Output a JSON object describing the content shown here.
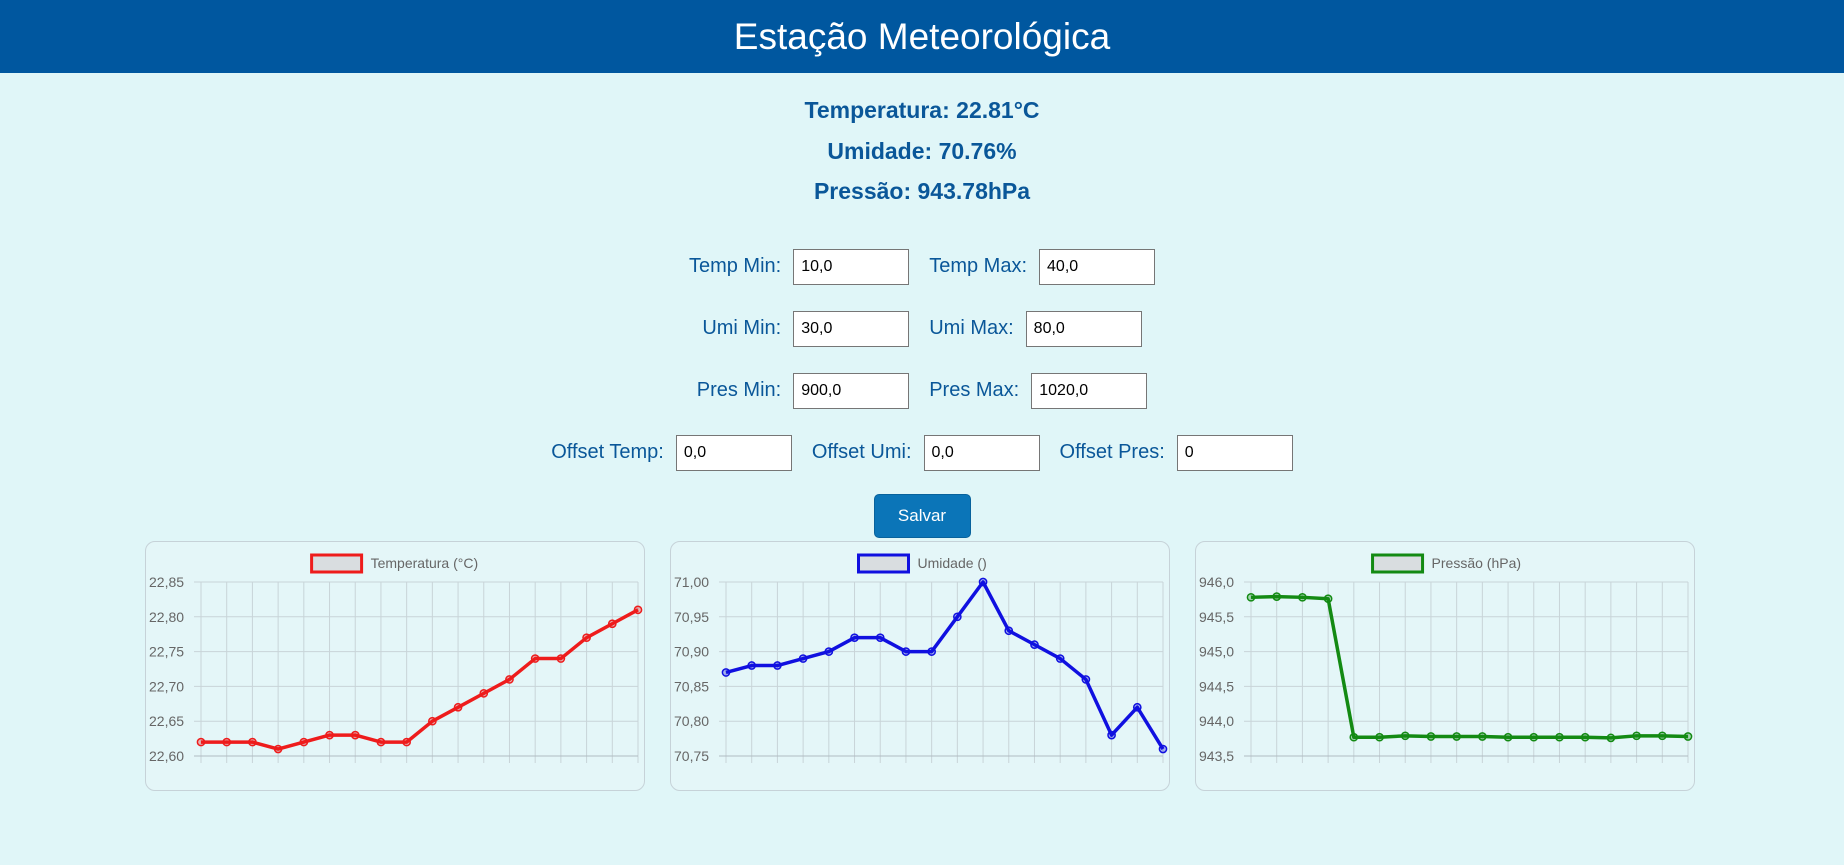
{
  "header": {
    "title": "Estação Meteorológica"
  },
  "readings": {
    "temperature": "Temperatura: 22.81°C",
    "humidity": "Umidade: 70.76%",
    "pressure": "Pressão: 943.78hPa"
  },
  "form": {
    "temp_min": {
      "label": "Temp Min:",
      "value": "10,0"
    },
    "temp_max": {
      "label": "Temp Max:",
      "value": "40,0"
    },
    "umi_min": {
      "label": "Umi Min:",
      "value": "30,0"
    },
    "umi_max": {
      "label": "Umi Max:",
      "value": "80,0"
    },
    "pres_min": {
      "label": "Pres Min:",
      "value": "900,0"
    },
    "pres_max": {
      "label": "Pres Max:",
      "value": "1020,0"
    },
    "offset_temp": {
      "label": "Offset Temp:",
      "value": "0,0"
    },
    "offset_umi": {
      "label": "Offset Umi:",
      "value": "0,0"
    },
    "offset_pres": {
      "label": "Offset Pres:",
      "value": "0"
    },
    "save_label": "Salvar"
  },
  "colors": {
    "header_bg": "#00579f",
    "text_accent": "#0a5799",
    "button_bg": "#0b75b8",
    "page_bg": "#e0f6f8"
  },
  "chart_data": [
    {
      "type": "line",
      "series": [
        {
          "name": "Temperatura (°C)",
          "color": "#ee1c1c",
          "values": [
            22.62,
            22.62,
            22.62,
            22.61,
            22.62,
            22.63,
            22.63,
            22.62,
            22.62,
            22.65,
            22.67,
            22.69,
            22.71,
            22.74,
            22.74,
            22.77,
            22.79,
            22.81
          ]
        }
      ],
      "yticks": [
        "22,60",
        "22,65",
        "22,70",
        "22,75",
        "22,80",
        "22,85"
      ],
      "ylim": [
        22.6,
        22.85
      ],
      "grid": true,
      "legend": "top-center"
    },
    {
      "type": "line",
      "series": [
        {
          "name": "Umidade ()",
          "color": "#1010e0",
          "values": [
            70.87,
            70.88,
            70.88,
            70.89,
            70.9,
            70.92,
            70.92,
            70.9,
            70.9,
            70.95,
            71.0,
            70.93,
            70.91,
            70.89,
            70.86,
            70.78,
            70.82,
            70.76
          ]
        }
      ],
      "yticks": [
        "70,75",
        "70,80",
        "70,85",
        "70,90",
        "70,95",
        "71,00"
      ],
      "ylim": [
        70.75,
        71.0
      ],
      "grid": true,
      "legend": "top-center"
    },
    {
      "type": "line",
      "series": [
        {
          "name": "Pressão (hPa)",
          "color": "#138a13",
          "values": [
            945.78,
            945.79,
            945.78,
            945.76,
            943.77,
            943.77,
            943.79,
            943.78,
            943.78,
            943.78,
            943.77,
            943.77,
            943.77,
            943.77,
            943.76,
            943.79,
            943.79,
            943.78
          ]
        }
      ],
      "yticks": [
        "943,5",
        "944,0",
        "944,5",
        "945,0",
        "945,5",
        "946,0"
      ],
      "ylim": [
        943.5,
        946.0
      ],
      "grid": true,
      "legend": "top-center"
    }
  ]
}
